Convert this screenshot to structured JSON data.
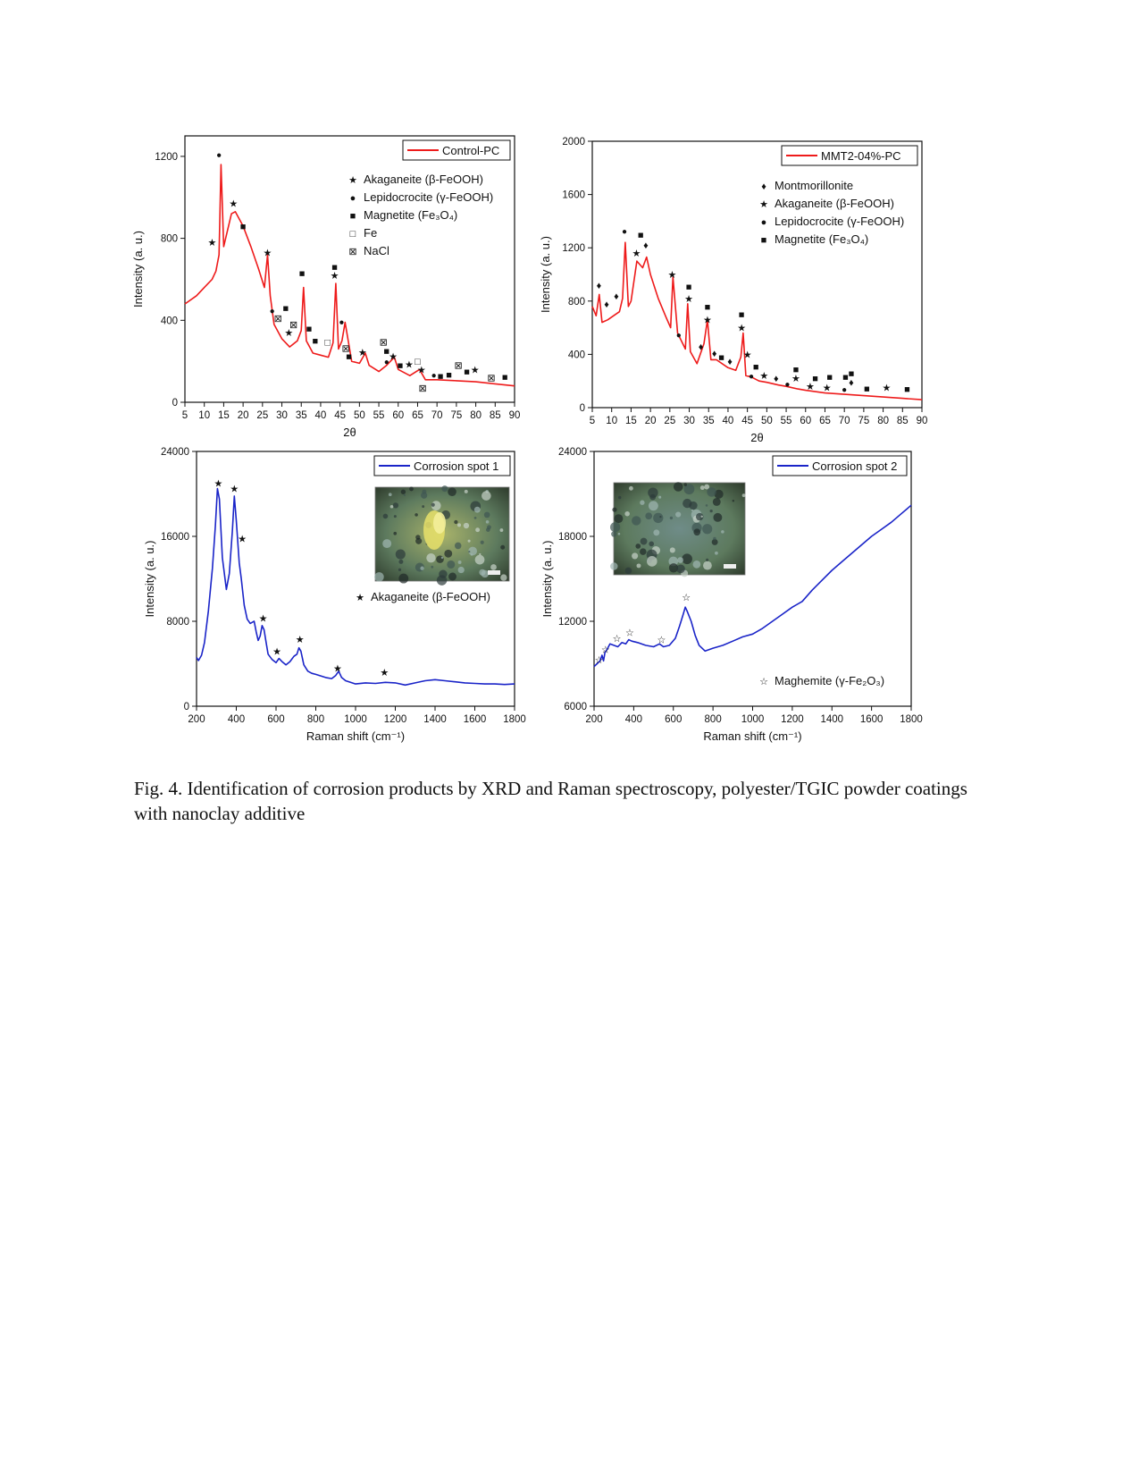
{
  "caption": "Fig. 4. Identification of corrosion products by XRD and Raman spectroscopy, polyester/TGIC powder coatings with nanoclay additive",
  "colors": {
    "xrd": "#ee1b1b",
    "raman": "#1a24c8",
    "axis": "#111111",
    "photo_bg": "#6b8a6a"
  },
  "chart_data": [
    {
      "type": "line",
      "series": [
        {
          "name": "Control-PC",
          "color": "#ee1b1b",
          "x": [
            5,
            8,
            10,
            12,
            13,
            13.8,
            14.3,
            15,
            17,
            18,
            20,
            22,
            24,
            25.5,
            26.3,
            27,
            28,
            30,
            32,
            34,
            35,
            35.6,
            36.3,
            38,
            40,
            42,
            43.2,
            43.9,
            44.6,
            45.5,
            46.3,
            48,
            50,
            51.5,
            52.5,
            55,
            57,
            59,
            60,
            63,
            65.5,
            67,
            70,
            75,
            80,
            85,
            90
          ],
          "y": [
            480,
            520,
            560,
            600,
            640,
            720,
            1160,
            760,
            920,
            930,
            860,
            760,
            650,
            560,
            720,
            520,
            380,
            310,
            270,
            300,
            350,
            560,
            300,
            240,
            230,
            220,
            290,
            580,
            260,
            300,
            390,
            200,
            190,
            240,
            180,
            150,
            180,
            220,
            160,
            130,
            160,
            110,
            110,
            105,
            100,
            90,
            80
          ]
        }
      ],
      "xlabel": "2θ",
      "ylabel": "Intensity (a. u.)",
      "xlim": [
        5,
        90
      ],
      "ylim": [
        0,
        1300
      ],
      "xticks": [
        "5",
        "10",
        "15",
        "20",
        "25",
        "30",
        "35",
        "40",
        "45",
        "50",
        "55",
        "60",
        "65",
        "70",
        "75",
        "80",
        "85",
        "90"
      ],
      "yticks": [
        "0",
        "400",
        "800",
        "1200"
      ],
      "legend_position": "top-right",
      "phase_legend": [
        {
          "symbol": "★",
          "label": "Akaganeite (β-FeOOH)"
        },
        {
          "symbol": "●",
          "label": "Lepidocrocite (γ-FeOOH)"
        },
        {
          "symbol": "■",
          "label": "Magnetite (Fe₃O₄)"
        },
        {
          "symbol": "□",
          "label": "Fe"
        },
        {
          "symbol": "⊠",
          "label": "NaCl"
        }
      ],
      "markers": [
        {
          "s": "●",
          "x": 13.8,
          "y": 1210
        },
        {
          "s": "★",
          "x": 12,
          "y": 780
        },
        {
          "s": "★",
          "x": 17.5,
          "y": 970
        },
        {
          "s": "■",
          "x": 20,
          "y": 860
        },
        {
          "s": "★",
          "x": 26.3,
          "y": 730
        },
        {
          "s": "●",
          "x": 27.5,
          "y": 450
        },
        {
          "s": "⊠",
          "x": 29,
          "y": 410
        },
        {
          "s": "■",
          "x": 31,
          "y": 460
        },
        {
          "s": "★",
          "x": 31.8,
          "y": 340
        },
        {
          "s": "⊠",
          "x": 33,
          "y": 380
        },
        {
          "s": "■",
          "x": 35.2,
          "y": 630
        },
        {
          "s": "■",
          "x": 37,
          "y": 360
        },
        {
          "s": "■",
          "x": 38.6,
          "y": 300
        },
        {
          "s": "□",
          "x": 41.8,
          "y": 295
        },
        {
          "s": "■",
          "x": 43.6,
          "y": 660
        },
        {
          "s": "★",
          "x": 43.6,
          "y": 620
        },
        {
          "s": "●",
          "x": 45.4,
          "y": 395
        },
        {
          "s": "⊠",
          "x": 46.5,
          "y": 265
        },
        {
          "s": "■",
          "x": 47.3,
          "y": 225
        },
        {
          "s": "★",
          "x": 50.8,
          "y": 245
        },
        {
          "s": "⊠",
          "x": 56.2,
          "y": 295
        },
        {
          "s": "■",
          "x": 57,
          "y": 250
        },
        {
          "s": "●",
          "x": 57,
          "y": 200
        },
        {
          "s": "★",
          "x": 58.7,
          "y": 225
        },
        {
          "s": "■",
          "x": 60.5,
          "y": 180
        },
        {
          "s": "★",
          "x": 62.8,
          "y": 185
        },
        {
          "s": "□",
          "x": 65,
          "y": 200
        },
        {
          "s": "★",
          "x": 66,
          "y": 160
        },
        {
          "s": "⊠",
          "x": 66.3,
          "y": 70
        },
        {
          "s": "●",
          "x": 69.2,
          "y": 135
        },
        {
          "s": "■",
          "x": 70.9,
          "y": 128
        },
        {
          "s": "■",
          "x": 73.1,
          "y": 135
        },
        {
          "s": "⊠",
          "x": 75.5,
          "y": 180
        },
        {
          "s": "■",
          "x": 77.7,
          "y": 150
        },
        {
          "s": "★",
          "x": 79.8,
          "y": 160
        },
        {
          "s": "⊠",
          "x": 84,
          "y": 120
        },
        {
          "s": "■",
          "x": 87.5,
          "y": 125
        }
      ]
    },
    {
      "type": "line",
      "series": [
        {
          "name": "MMT2-04%-PC",
          "color": "#ee1b1b",
          "x": [
            5,
            6,
            6.8,
            7.5,
            9,
            11,
            12,
            12.8,
            13.5,
            14.3,
            15,
            16.5,
            18,
            19,
            20,
            22,
            24,
            25.2,
            25.8,
            27,
            29,
            29.6,
            30.3,
            32,
            33.8,
            34.7,
            35.6,
            37,
            40,
            42,
            43.3,
            43.9,
            44.6,
            46,
            48,
            50,
            53,
            55,
            58,
            60,
            65,
            70,
            75,
            80,
            85,
            90
          ],
          "y": [
            760,
            690,
            850,
            640,
            660,
            700,
            720,
            820,
            1240,
            760,
            800,
            1100,
            1050,
            1130,
            1000,
            820,
            680,
            600,
            980,
            560,
            440,
            780,
            420,
            330,
            480,
            660,
            360,
            360,
            300,
            280,
            380,
            560,
            240,
            230,
            200,
            190,
            170,
            160,
            140,
            130,
            110,
            100,
            90,
            80,
            70,
            60
          ]
        }
      ],
      "xlabel": "2θ",
      "ylabel": "Intensity (a. u.)",
      "xlim": [
        5,
        90
      ],
      "ylim": [
        0,
        2000
      ],
      "xticks": [
        "5",
        "10",
        "15",
        "20",
        "25",
        "30",
        "35",
        "40",
        "45",
        "50",
        "55",
        "60",
        "65",
        "70",
        "75",
        "80",
        "85",
        "90"
      ],
      "yticks": [
        "0",
        "400",
        "800",
        "1200",
        "1600",
        "2000"
      ],
      "legend_position": "top-right",
      "phase_legend": [
        {
          "symbol": "♦",
          "label": "Montmorillonite"
        },
        {
          "symbol": "★",
          "label": "Akaganeite (β-FeOOH)"
        },
        {
          "symbol": "●",
          "label": "Lepidocrocite (γ-FeOOH)"
        },
        {
          "symbol": "■",
          "label": "Magnetite (Fe₃O₄)"
        }
      ],
      "markers": [
        {
          "s": "♦",
          "x": 6.7,
          "y": 920
        },
        {
          "s": "♦",
          "x": 8.7,
          "y": 780
        },
        {
          "s": "♦",
          "x": 11.2,
          "y": 840
        },
        {
          "s": "●",
          "x": 13.3,
          "y": 1330
        },
        {
          "s": "★",
          "x": 16.4,
          "y": 1160
        },
        {
          "s": "■",
          "x": 17.5,
          "y": 1300
        },
        {
          "s": "♦",
          "x": 18.8,
          "y": 1220
        },
        {
          "s": "★",
          "x": 25.6,
          "y": 1000
        },
        {
          "s": "●",
          "x": 27.3,
          "y": 550
        },
        {
          "s": "■",
          "x": 29.9,
          "y": 910
        },
        {
          "s": "★",
          "x": 29.9,
          "y": 820
        },
        {
          "s": "♦",
          "x": 33,
          "y": 460
        },
        {
          "s": "■",
          "x": 34.7,
          "y": 760
        },
        {
          "s": "★",
          "x": 34.7,
          "y": 660
        },
        {
          "s": "♦",
          "x": 36.5,
          "y": 410
        },
        {
          "s": "■",
          "x": 38.3,
          "y": 380
        },
        {
          "s": "♦",
          "x": 40.5,
          "y": 350
        },
        {
          "s": "■",
          "x": 43.5,
          "y": 700
        },
        {
          "s": "★",
          "x": 43.5,
          "y": 600
        },
        {
          "s": "★",
          "x": 45,
          "y": 400
        },
        {
          "s": "●",
          "x": 46,
          "y": 240
        },
        {
          "s": "■",
          "x": 47.2,
          "y": 310
        },
        {
          "s": "★",
          "x": 49.3,
          "y": 240
        },
        {
          "s": "♦",
          "x": 52.4,
          "y": 220
        },
        {
          "s": "●",
          "x": 55.3,
          "y": 180
        },
        {
          "s": "■",
          "x": 57.5,
          "y": 290
        },
        {
          "s": "★",
          "x": 57.5,
          "y": 220
        },
        {
          "s": "★",
          "x": 61.2,
          "y": 160
        },
        {
          "s": "■",
          "x": 62.5,
          "y": 220
        },
        {
          "s": "★",
          "x": 65.5,
          "y": 150
        },
        {
          "s": "■",
          "x": 66.2,
          "y": 230
        },
        {
          "s": "●",
          "x": 70,
          "y": 140
        },
        {
          "s": "■",
          "x": 70.3,
          "y": 230
        },
        {
          "s": "■",
          "x": 71.8,
          "y": 260
        },
        {
          "s": "♦",
          "x": 71.8,
          "y": 190
        },
        {
          "s": "■",
          "x": 75.8,
          "y": 145
        },
        {
          "s": "★",
          "x": 80.9,
          "y": 150
        },
        {
          "s": "■",
          "x": 86.2,
          "y": 140
        }
      ]
    },
    {
      "type": "line",
      "series": [
        {
          "name": "Corrosion spot 1",
          "color": "#1a24c8",
          "x": [
            200,
            210,
            225,
            240,
            260,
            280,
            295,
            305,
            315,
            330,
            350,
            365,
            380,
            390,
            400,
            415,
            425,
            440,
            455,
            470,
            480,
            490,
            500,
            510,
            520,
            530,
            540,
            550,
            560,
            580,
            600,
            615,
            630,
            650,
            670,
            690,
            705,
            715,
            725,
            740,
            760,
            780,
            800,
            850,
            880,
            900,
            915,
            930,
            950,
            1000,
            1050,
            1100,
            1150,
            1200,
            1250,
            1300,
            1350,
            1400,
            1450,
            1500,
            1550,
            1600,
            1650,
            1700,
            1750,
            1800
          ],
          "y": [
            4600,
            4300,
            4800,
            6000,
            9000,
            13000,
            17000,
            20500,
            19500,
            14000,
            11000,
            12500,
            16500,
            19800,
            17500,
            13500,
            12000,
            9500,
            8200,
            7800,
            7900,
            8000,
            7000,
            6200,
            6600,
            7600,
            7200,
            6000,
            4900,
            4400,
            4100,
            4500,
            4200,
            3900,
            4200,
            4700,
            4900,
            5500,
            5200,
            3900,
            3300,
            3100,
            3000,
            2700,
            2600,
            2900,
            3300,
            2700,
            2400,
            2100,
            2200,
            2150,
            2250,
            2200,
            2000,
            2200,
            2400,
            2500,
            2400,
            2300,
            2200,
            2150,
            2100,
            2100,
            2050,
            2100
          ]
        }
      ],
      "xlabel": "Raman shift (cm⁻¹)",
      "ylabel": "Intensity (a. u.)",
      "xlim": [
        200,
        1800
      ],
      "ylim": [
        0,
        24000
      ],
      "xticks": [
        "200",
        "400",
        "600",
        "800",
        "1000",
        "1200",
        "1400",
        "1600",
        "1800"
      ],
      "yticks": [
        "0",
        "8000",
        "16000",
        "24000"
      ],
      "legend_position": "top-right",
      "phase_legend": [
        {
          "symbol": "★",
          "label": "Akaganeite (β-FeOOH)"
        }
      ],
      "markers": [
        {
          "s": "★",
          "x": 310,
          "y": 21000
        },
        {
          "s": "★",
          "x": 390,
          "y": 20500
        },
        {
          "s": "★",
          "x": 430,
          "y": 15800
        },
        {
          "s": "★",
          "x": 535,
          "y": 8300
        },
        {
          "s": "★",
          "x": 605,
          "y": 5200
        },
        {
          "s": "★",
          "x": 720,
          "y": 6300
        },
        {
          "s": "★",
          "x": 910,
          "y": 3600
        },
        {
          "s": "★",
          "x": 1145,
          "y": 3200
        }
      ]
    },
    {
      "type": "line",
      "series": [
        {
          "name": "Corrosion spot 2",
          "color": "#1a24c8",
          "x": [
            200,
            215,
            230,
            240,
            248,
            255,
            265,
            280,
            300,
            320,
            340,
            360,
            375,
            390,
            420,
            460,
            500,
            530,
            550,
            580,
            610,
            630,
            650,
            660,
            670,
            690,
            710,
            730,
            760,
            800,
            850,
            900,
            950,
            1000,
            1050,
            1100,
            1150,
            1200,
            1250,
            1300,
            1350,
            1400,
            1450,
            1500,
            1550,
            1600,
            1650,
            1700,
            1750,
            1800
          ],
          "y": [
            8800,
            9000,
            9200,
            9600,
            9200,
            9800,
            10000,
            10400,
            10300,
            10200,
            10500,
            10400,
            10700,
            10600,
            10500,
            10300,
            10200,
            10400,
            10200,
            10300,
            10800,
            11600,
            12500,
            13000,
            12700,
            12000,
            11000,
            10300,
            9900,
            10100,
            10300,
            10600,
            10900,
            11100,
            11500,
            12000,
            12500,
            13000,
            13400,
            14200,
            14900,
            15600,
            16200,
            16800,
            17400,
            18000,
            18500,
            19000,
            19600,
            20200
          ]
        }
      ],
      "xlabel": "Raman shift (cm⁻¹)",
      "ylabel": "Intensity (a. u.)",
      "xlim": [
        200,
        1800
      ],
      "ylim": [
        6000,
        24000
      ],
      "xticks": [
        "200",
        "400",
        "600",
        "800",
        "1000",
        "1200",
        "1400",
        "1600",
        "1800"
      ],
      "yticks": [
        "6000",
        "12000",
        "18000",
        "24000"
      ],
      "legend_position": "top-right",
      "phase_legend": [
        {
          "symbol": "☆",
          "label": "Maghemite  (γ-Fe₂O₃)"
        }
      ],
      "markers": [
        {
          "s": "☆",
          "x": 225,
          "y": 9300
        },
        {
          "s": "☆",
          "x": 258,
          "y": 10000
        },
        {
          "s": "☆",
          "x": 315,
          "y": 10800
        },
        {
          "s": "☆",
          "x": 380,
          "y": 11200
        },
        {
          "s": "☆",
          "x": 540,
          "y": 10700
        },
        {
          "s": "☆",
          "x": 665,
          "y": 13700
        }
      ]
    }
  ]
}
